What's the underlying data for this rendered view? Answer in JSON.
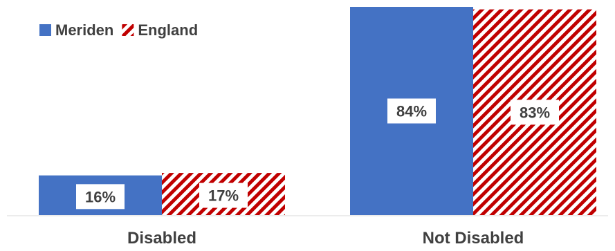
{
  "chart_data": {
    "type": "bar",
    "title": "",
    "xlabel": "",
    "ylabel": "",
    "categories": [
      "Disabled",
      "Not Disabled"
    ],
    "series": [
      {
        "name": "Meriden",
        "values": [
          16,
          84
        ],
        "color": "#4472C4",
        "pattern": "solid"
      },
      {
        "name": "England",
        "values": [
          17,
          83
        ],
        "color": "#C00000",
        "pattern": "diagonal-stripes"
      }
    ],
    "data_labels": [
      [
        "16%",
        "84%"
      ],
      [
        "17%",
        "83%"
      ]
    ],
    "ylim": [
      0,
      84
    ],
    "grid": false,
    "legend": "top-left"
  }
}
